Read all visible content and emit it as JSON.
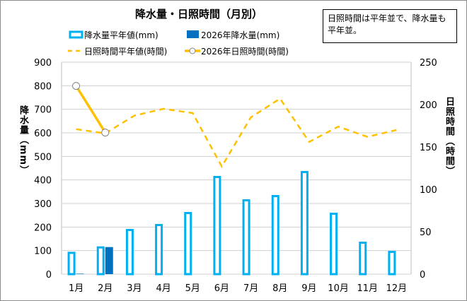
{
  "chart_data": {
    "type": "bar+line",
    "title": "降水量・日照時間（月別）",
    "note": "日照時間は平年並で、降水量も平年並。",
    "categories": [
      "1月",
      "2月",
      "3月",
      "4月",
      "5月",
      "6月",
      "7月",
      "8月",
      "9月",
      "10月",
      "11月",
      "12月"
    ],
    "y_left": {
      "label": "降水量（mm）",
      "range": [
        0,
        900
      ],
      "ticks": [
        0,
        100,
        200,
        300,
        400,
        500,
        600,
        700,
        800,
        900
      ]
    },
    "y_right": {
      "label": "日照時間（時間）",
      "range": [
        0,
        250
      ],
      "ticks": [
        0,
        50,
        100,
        150,
        200,
        250
      ]
    },
    "grid": true,
    "legend_position": "top-right",
    "series": [
      {
        "name": "降水量平年値(mm)",
        "type": "bar",
        "axis": "left",
        "color": "#00b0f0",
        "values": [
          95,
          118,
          192,
          213,
          264,
          417,
          318,
          336,
          438,
          261,
          138,
          99
        ]
      },
      {
        "name": "2026年降水量(mm)",
        "type": "bar",
        "axis": "left",
        "color": "#0070c0",
        "values": [
          2,
          115,
          null,
          null,
          null,
          null,
          null,
          null,
          null,
          null,
          null,
          null
        ]
      },
      {
        "name": "日照時間平年値(時間)",
        "type": "line",
        "style": "dashed",
        "axis": "right",
        "color": "#ffc000",
        "values": [
          171,
          166,
          187,
          195,
          190,
          127,
          185,
          207,
          156,
          174,
          162,
          170
        ]
      },
      {
        "name": "2026年日照時間(時間)",
        "type": "line",
        "axis": "right",
        "color": "#ffc000",
        "values": [
          222,
          167,
          null,
          null,
          null,
          null,
          null,
          null,
          null,
          null,
          null,
          null
        ]
      }
    ]
  }
}
